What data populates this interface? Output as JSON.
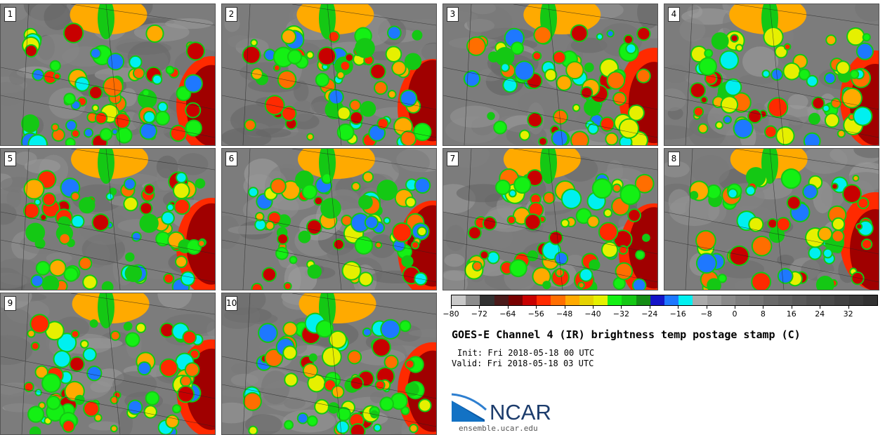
{
  "panels": [
    {
      "label": "1"
    },
    {
      "label": "2"
    },
    {
      "label": "3"
    },
    {
      "label": "4"
    },
    {
      "label": "5"
    },
    {
      "label": "6"
    },
    {
      "label": "7"
    },
    {
      "label": "8"
    },
    {
      "label": "9"
    },
    {
      "label": "10"
    }
  ],
  "colorbar": {
    "colors": [
      "#c8c8c8",
      "#8c8c8c",
      "#323232",
      "#4a1a1a",
      "#780000",
      "#c80000",
      "#ff2a00",
      "#ff6e00",
      "#ffaa00",
      "#e6d200",
      "#e6f000",
      "#14f014",
      "#14c814",
      "#148c14",
      "#1414c8",
      "#1e78ff",
      "#00f0f0",
      "#aaaaaa",
      "#9a9a9a",
      "#8a8a8a",
      "#7e7e7e",
      "#747474",
      "#6a6a6a",
      "#626262",
      "#5a5a5a",
      "#525252",
      "#4a4a4a",
      "#424242",
      "#3a3a3a",
      "#323232"
    ],
    "tick_labels": [
      "−80",
      "−72",
      "−64",
      "−56",
      "−48",
      "−40",
      "−32",
      "−24",
      "−16",
      "−8",
      "0",
      "8",
      "16",
      "24",
      "32"
    ]
  },
  "title": "GOES-E Channel 4 (IR) brightness temp postage stamp (C)",
  "init_line": "Init: Fri 2018-05-18 00 UTC",
  "valid_line": "Valid: Fri 2018-05-18 03 UTC",
  "logo_text": "NCAR",
  "website": "ensemble.ucar.edu"
}
